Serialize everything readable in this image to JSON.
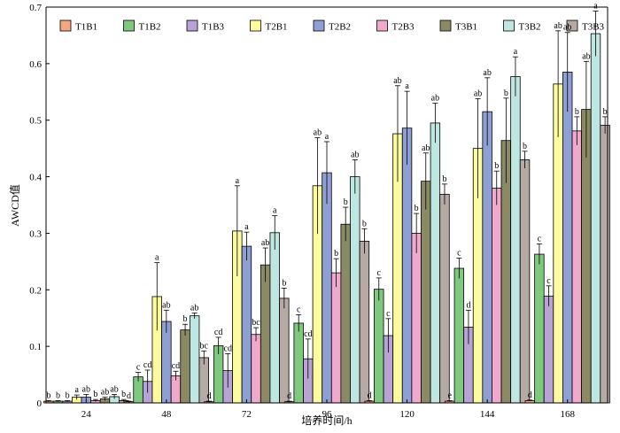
{
  "chart_data": {
    "type": "bar",
    "ylabel": "AWCD值",
    "xlabel": "培养时间/h",
    "ylim": [
      0,
      0.7
    ],
    "yticks": [
      0,
      0.1,
      0.2,
      0.3,
      0.4,
      0.5,
      0.6,
      0.7
    ],
    "grid": false,
    "legend_position": "top",
    "categories": [
      "24",
      "48",
      "72",
      "96",
      "120",
      "144",
      "168"
    ],
    "series": [
      {
        "name": "T1B1",
        "color": "#f4a582",
        "values": [
          0.003,
          0.002,
          0.002,
          0.002,
          0.003,
          0.003,
          0.004
        ],
        "errors": [
          0.001,
          0.001,
          0.001,
          0.001,
          0.001,
          0.001,
          0.001
        ],
        "letters": [
          "b",
          "d",
          "d",
          "d",
          "d",
          "e",
          "d"
        ]
      },
      {
        "name": "T1B2",
        "color": "#7fc97f",
        "values": [
          0.003,
          0.046,
          0.101,
          0.141,
          0.201,
          0.238,
          0.263
        ],
        "errors": [
          0.001,
          0.008,
          0.015,
          0.015,
          0.02,
          0.018,
          0.018
        ],
        "letters": [
          "b",
          "c",
          "cd",
          "c",
          "c",
          "c",
          "c"
        ]
      },
      {
        "name": "T1B3",
        "color": "#b8a2d6",
        "values": [
          0.003,
          0.038,
          0.057,
          0.078,
          0.119,
          0.134,
          0.189
        ],
        "errors": [
          0.001,
          0.02,
          0.03,
          0.035,
          0.03,
          0.03,
          0.018
        ],
        "letters": [
          "b",
          "cd",
          "cd",
          "cd",
          "c",
          "d",
          "c"
        ]
      },
      {
        "name": "T2B1",
        "color": "#fcfc9e",
        "values": [
          0.01,
          0.188,
          0.304,
          0.384,
          0.476,
          0.45,
          0.564
        ],
        "errors": [
          0.004,
          0.06,
          0.08,
          0.085,
          0.085,
          0.088,
          0.094
        ],
        "letters": [
          "a",
          "a",
          "a",
          "ab",
          "ab",
          "ab",
          "ab"
        ]
      },
      {
        "name": "T2B2",
        "color": "#8e9fd4",
        "values": [
          0.01,
          0.144,
          0.277,
          0.407,
          0.486,
          0.515,
          0.585
        ],
        "errors": [
          0.005,
          0.02,
          0.025,
          0.055,
          0.065,
          0.06,
          0.07
        ],
        "letters": [
          "ab",
          "ab",
          "a",
          "a",
          "a",
          "ab",
          "ab"
        ]
      },
      {
        "name": "T2B3",
        "color": "#f0a8cc",
        "values": [
          0.004,
          0.048,
          0.121,
          0.23,
          0.3,
          0.38,
          0.481
        ],
        "errors": [
          0.002,
          0.008,
          0.012,
          0.025,
          0.035,
          0.03,
          0.025
        ],
        "letters": [
          "b",
          "cd",
          "bc",
          "b",
          "b",
          "b",
          "b"
        ]
      },
      {
        "name": "T3B1",
        "color": "#8c8a64",
        "values": [
          0.007,
          0.129,
          0.244,
          0.316,
          0.392,
          0.464,
          0.519
        ],
        "errors": [
          0.003,
          0.01,
          0.03,
          0.03,
          0.05,
          0.075,
          0.085
        ],
        "letters": [
          "ab",
          "b",
          "ab",
          "b",
          "ab",
          "b",
          "ab"
        ]
      },
      {
        "name": "T3B2",
        "color": "#bfe7e1",
        "values": [
          0.011,
          0.154,
          0.301,
          0.4,
          0.495,
          0.577,
          0.653
        ],
        "errors": [
          0.004,
          0.005,
          0.03,
          0.03,
          0.035,
          0.035,
          0.04
        ],
        "letters": [
          "ab",
          "ab",
          "a",
          "ab",
          "ab",
          "a",
          "a"
        ]
      },
      {
        "name": "T3B3",
        "color": "#b5aaa4",
        "values": [
          0.004,
          0.08,
          0.185,
          0.286,
          0.369,
          0.43,
          0.491
        ],
        "errors": [
          0.002,
          0.012,
          0.018,
          0.022,
          0.018,
          0.015,
          0.015
        ],
        "letters": [
          "b",
          "bc",
          "b",
          "b",
          "b",
          "b",
          "b"
        ]
      }
    ]
  }
}
